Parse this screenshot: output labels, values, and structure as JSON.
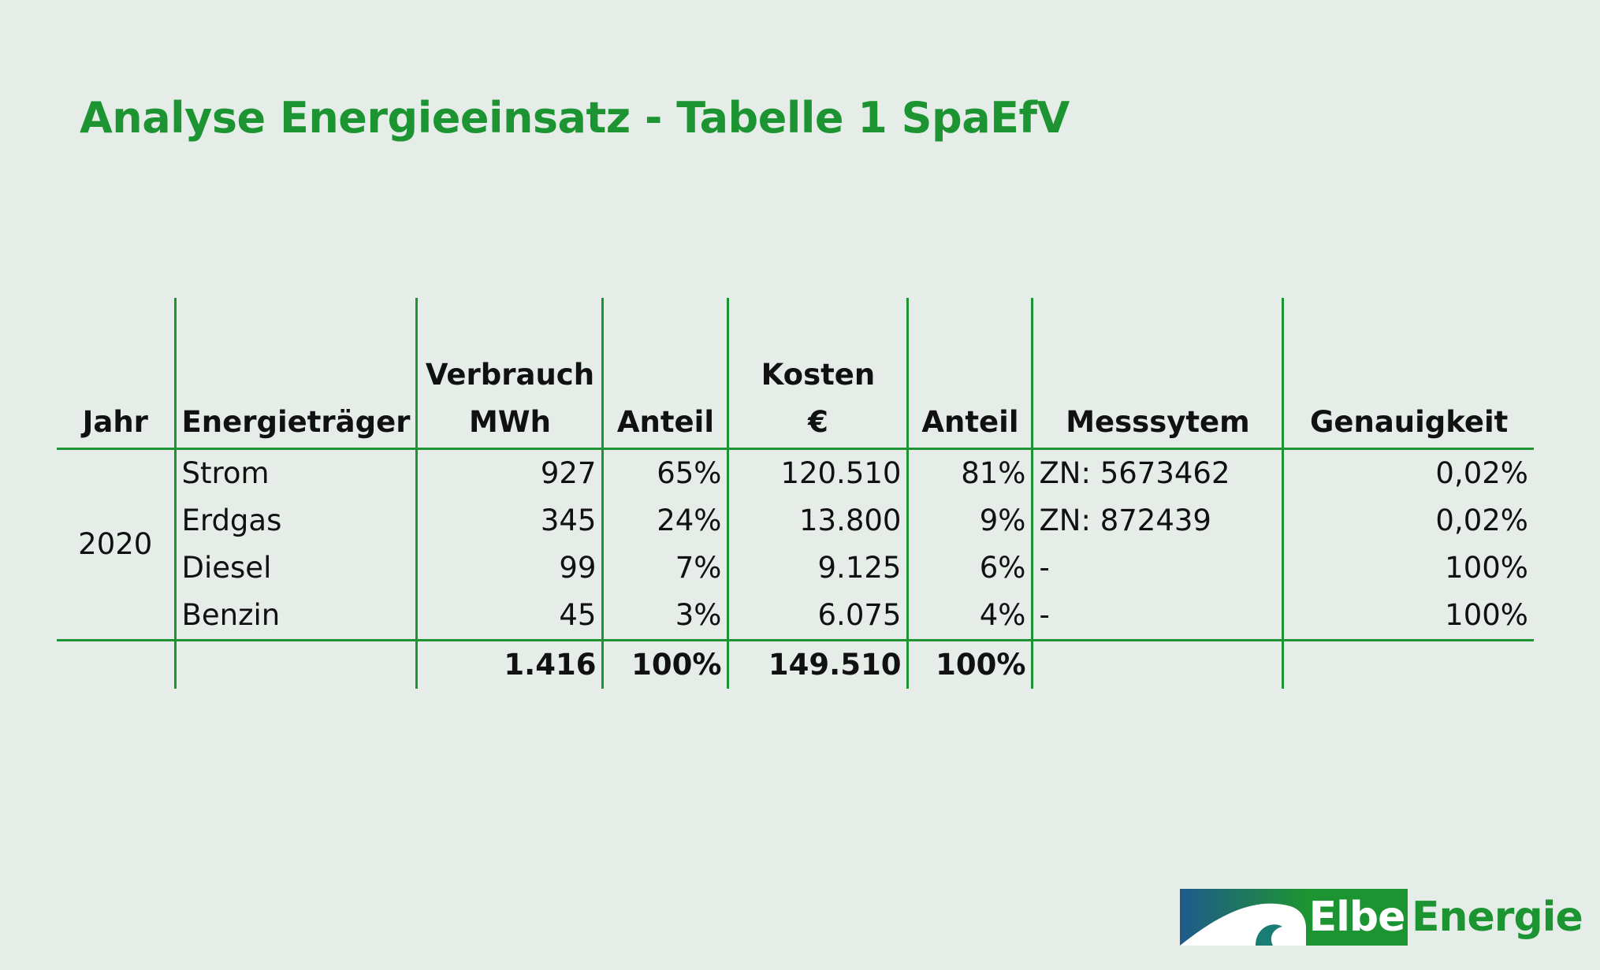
{
  "title": "Analyse Energieeinsatz - Tabelle 1 SpaEfV",
  "table": {
    "headers": {
      "jahr": "Jahr",
      "energietraeger": "Energieträger",
      "verbrauch_line1": "Verbrauch",
      "verbrauch_line2": "MWh",
      "anteil1": "Anteil",
      "kosten_line1": "Kosten",
      "kosten_line2": "€",
      "anteil2": "Anteil",
      "messsystem": "Messsytem",
      "genauigkeit": "Genauigkeit"
    },
    "year": "2020",
    "rows": [
      {
        "traeger": "Strom",
        "verbrauch": "927",
        "anteil_verbrauch": "65%",
        "kosten": "120.510",
        "anteil_kosten": "81%",
        "messsystem": "ZN: 5673462",
        "genauigkeit": "0,02%"
      },
      {
        "traeger": "Erdgas",
        "verbrauch": "345",
        "anteil_verbrauch": "24%",
        "kosten": "13.800",
        "anteil_kosten": "9%",
        "messsystem": "ZN: 872439",
        "genauigkeit": "0,02%"
      },
      {
        "traeger": "Diesel",
        "verbrauch": "99",
        "anteil_verbrauch": "7%",
        "kosten": "9.125",
        "anteil_kosten": "6%",
        "messsystem": "-",
        "genauigkeit": "100%"
      },
      {
        "traeger": "Benzin",
        "verbrauch": "45",
        "anteil_verbrauch": "3%",
        "kosten": "6.075",
        "anteil_kosten": "4%",
        "messsystem": "-",
        "genauigkeit": "100%"
      }
    ],
    "totals": {
      "verbrauch": "1.416",
      "anteil_verbrauch": "100%",
      "kosten": "149.510",
      "anteil_kosten": "100%"
    }
  },
  "logo": {
    "part1": "Elbe",
    "part2": "Energie",
    "colors": {
      "green": "#1d9432",
      "blue": "#1f5a8c"
    }
  }
}
